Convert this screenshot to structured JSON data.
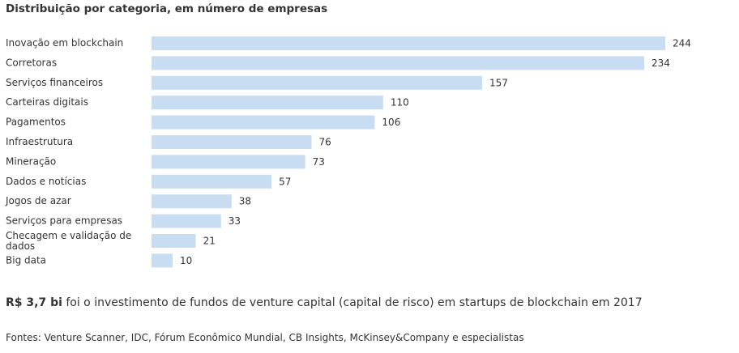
{
  "chart_data": {
    "type": "bar",
    "orientation": "horizontal",
    "title": "Distribuição por categoria, em número de empresas",
    "categories": [
      "Inovação em blockchain",
      "Corretoras",
      "Serviços financeiros",
      "Carteiras digitais",
      "Pagamentos",
      "Infraestrutura",
      "Mineração",
      "Dados e notícias",
      "Jogos de azar",
      "Serviços para empresas",
      "Checagem e validação de dados",
      "Big data"
    ],
    "values": [
      244,
      234,
      157,
      110,
      106,
      76,
      73,
      57,
      38,
      33,
      21,
      10
    ],
    "bar_color": "#c8dcf2",
    "grid": false,
    "legend": "none"
  },
  "highlight": {
    "value": "R$ 3,7 bi",
    "text": "foi o investimento de fundos de venture capital (capital de risco) em startups de blockchain em 2017"
  },
  "sources": "Fontes: Venture Scanner, IDC, Fórum Econômico Mundial, CB Insights, McKinsey&Company e especialistas"
}
